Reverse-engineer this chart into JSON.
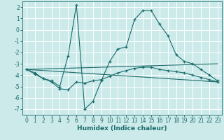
{
  "xlabel": "Humidex (Indice chaleur)",
  "background_color": "#cceaea",
  "grid_color": "#ffffff",
  "line_color": "#1a6b6b",
  "xlim": [
    -0.5,
    23.5
  ],
  "ylim": [
    -7.5,
    2.5
  ],
  "xticks": [
    0,
    1,
    2,
    3,
    4,
    5,
    6,
    7,
    8,
    9,
    10,
    11,
    12,
    13,
    14,
    15,
    16,
    17,
    18,
    19,
    20,
    21,
    22,
    23
  ],
  "yticks": [
    -7,
    -6,
    -5,
    -4,
    -3,
    -2,
    -1,
    0,
    1,
    2
  ],
  "line1_x": [
    0,
    1,
    2,
    3,
    4,
    5,
    6,
    7,
    8,
    9,
    10,
    11,
    12,
    13,
    14,
    15,
    16,
    17,
    18,
    19,
    20,
    21,
    22,
    23
  ],
  "line1_y": [
    -3.5,
    -3.9,
    -4.3,
    -4.5,
    -5.0,
    -2.3,
    2.2,
    -7.0,
    -6.3,
    -4.5,
    -2.8,
    -1.7,
    -1.5,
    0.9,
    1.7,
    1.7,
    0.5,
    -0.5,
    -2.2,
    -2.8,
    -3.0,
    -3.5,
    -4.0,
    -4.5
  ],
  "line2_x": [
    0,
    1,
    2,
    3,
    4,
    5,
    6,
    7,
    8,
    9,
    10,
    11,
    12,
    13,
    14,
    15,
    16,
    17,
    18,
    19,
    20,
    21,
    22,
    23
  ],
  "line2_y": [
    -3.5,
    -3.8,
    -4.3,
    -4.6,
    -5.2,
    -5.3,
    -4.6,
    -4.7,
    -4.5,
    -4.4,
    -4.1,
    -3.8,
    -3.6,
    -3.4,
    -3.3,
    -3.3,
    -3.5,
    -3.6,
    -3.7,
    -3.8,
    -4.0,
    -4.2,
    -4.4,
    -4.6
  ],
  "line3_x": [
    0,
    23
  ],
  "line3_y": [
    -3.5,
    -4.6
  ],
  "line4_x": [
    0,
    23
  ],
  "line4_y": [
    -3.5,
    -3.0
  ],
  "tick_fontsize": 5.5,
  "xlabel_fontsize": 6.5
}
